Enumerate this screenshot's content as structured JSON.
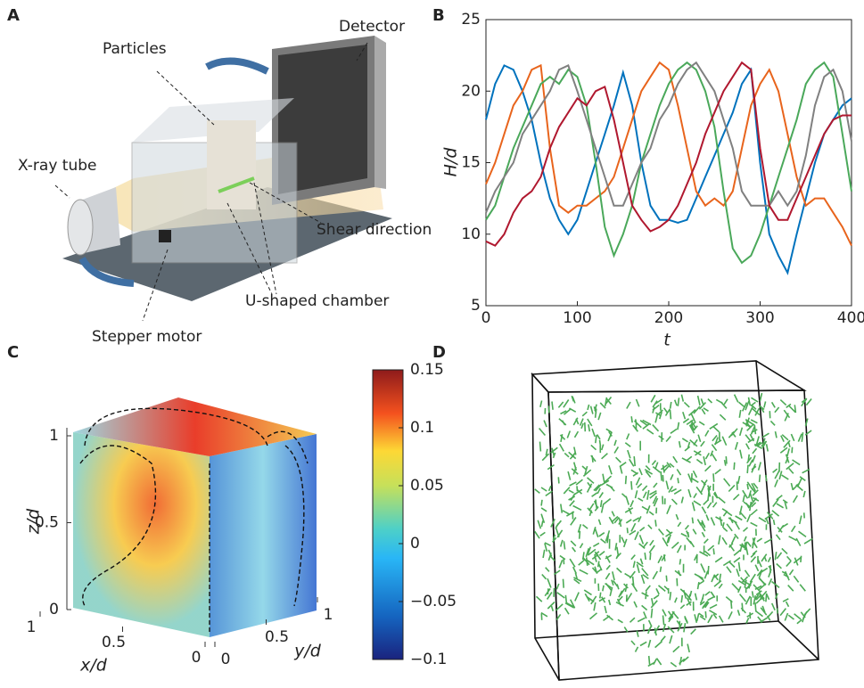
{
  "panel_labels": [
    "A",
    "B",
    "C",
    "D"
  ],
  "diagram_a": {
    "labels": [
      "Particles",
      "Detector",
      "X-ray tube",
      "Shear direction",
      "U-shaped chamber",
      "Stepper motor"
    ]
  },
  "chart_data": [
    {
      "type": "line",
      "xlabel": "t",
      "ylabel": "H/d",
      "xlim": [
        0,
        400
      ],
      "ylim": [
        5,
        25
      ],
      "xticks": [
        0,
        100,
        200,
        300,
        400
      ],
      "yticks": [
        5,
        10,
        15,
        20,
        25
      ],
      "x": [
        0,
        10,
        20,
        30,
        40,
        50,
        60,
        70,
        80,
        90,
        100,
        110,
        120,
        130,
        140,
        150,
        160,
        170,
        180,
        190,
        200,
        210,
        220,
        230,
        240,
        250,
        260,
        270,
        280,
        290,
        300,
        310,
        320,
        330,
        340,
        350,
        360,
        370,
        380,
        390,
        400
      ],
      "series": [
        {
          "color": "#0072bd",
          "values": [
            18,
            20.5,
            21.8,
            21.5,
            20,
            18,
            15,
            12.5,
            11,
            10,
            11,
            13,
            15,
            17,
            19,
            21.3,
            19,
            15,
            12,
            11,
            11,
            10.8,
            11,
            12.5,
            14,
            15.5,
            17,
            18.5,
            20.5,
            21.5,
            15,
            10,
            8.5,
            7.3,
            10,
            12.5,
            15,
            17,
            18,
            19,
            19.5
          ]
        },
        {
          "color": "#e8641c",
          "values": [
            13.5,
            15,
            17,
            19,
            20,
            21.5,
            21.8,
            16,
            12,
            11.5,
            12,
            12,
            12.5,
            13,
            14,
            16,
            18,
            20,
            21,
            22,
            21.5,
            19,
            16,
            13,
            12,
            12.5,
            12,
            13,
            16,
            19,
            20.5,
            21.5,
            20,
            17,
            14,
            12,
            12.5,
            12.5,
            11.5,
            10.5,
            9.2
          ]
        },
        {
          "color": "#4aa85a",
          "values": [
            11,
            12,
            14,
            16,
            17.5,
            19,
            20.5,
            21,
            20.5,
            21.5,
            21,
            19,
            15,
            10.5,
            8.5,
            10,
            12,
            15,
            17,
            19,
            20.5,
            21.5,
            22,
            21.5,
            20,
            17.5,
            13,
            9,
            8,
            8.5,
            10,
            12,
            14,
            16,
            18,
            20.5,
            21.5,
            22,
            21,
            17,
            13
          ]
        },
        {
          "color": "#808080",
          "values": [
            11.5,
            13,
            14,
            15,
            17,
            18,
            19,
            20,
            21.5,
            21.8,
            20,
            18,
            16,
            14,
            12,
            12,
            13.5,
            15,
            16,
            18,
            19,
            20.5,
            21.5,
            22,
            21,
            20,
            18,
            16,
            13,
            12,
            12,
            12,
            13,
            12,
            13,
            15.5,
            19,
            21,
            21.5,
            20,
            16.5
          ]
        },
        {
          "color": "#b0182f",
          "values": [
            9.5,
            9.2,
            10,
            11.5,
            12.5,
            13,
            14,
            16,
            17.5,
            18.5,
            19.5,
            19,
            20,
            20.3,
            18,
            15,
            12,
            11,
            10.2,
            10.5,
            11,
            12,
            13.5,
            15,
            17,
            18.5,
            20,
            21,
            22,
            21.5,
            16,
            12,
            11,
            11,
            12.5,
            14,
            15.5,
            17,
            18,
            18.3,
            18.3
          ]
        }
      ]
    },
    {
      "type": "colorbar",
      "ylim": [
        -0.1,
        0.15
      ],
      "yticks": [
        {
          "value": -0.1,
          "label": "−0.1"
        },
        {
          "value": -0.05,
          "label": "−0.05"
        },
        0,
        0.05,
        0.1,
        0.15
      ]
    },
    {
      "type": "cube",
      "xlabel": "x/d",
      "ylabel": "y/d",
      "zlabel": "z/d",
      "xticks": [
        0,
        0.5,
        1
      ],
      "yticks": [
        0,
        0.5,
        1
      ],
      "zticks": [
        0,
        0.5,
        1
      ]
    }
  ]
}
